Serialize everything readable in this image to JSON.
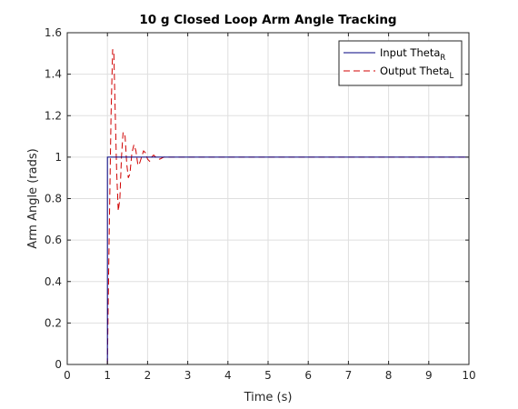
{
  "chart_data": {
    "type": "line",
    "title": "10 g Closed Loop Arm Angle Tracking",
    "xlabel": "Time (s)",
    "ylabel": "Arm Angle (rads)",
    "xlim": [
      0,
      10
    ],
    "ylim": [
      0,
      1.6
    ],
    "xticks": [
      "0",
      "1",
      "2",
      "3",
      "4",
      "5",
      "6",
      "7",
      "8",
      "9",
      "10"
    ],
    "yticks": [
      "0",
      "0.2",
      "0.4",
      "0.6",
      "0.8",
      "1",
      "1.2",
      "1.4",
      "1.6"
    ],
    "grid": true,
    "legend_position": "top-right",
    "series": [
      {
        "name": "Input Theta_R",
        "legend_main": "Input Theta",
        "legend_sub": "R",
        "color": "#00007f",
        "style": "solid",
        "x": [
          0,
          1.0,
          1.0,
          10
        ],
        "y": [
          0,
          0,
          1,
          1
        ]
      },
      {
        "name": "Output Theta_L",
        "legend_main": "Output Theta",
        "legend_sub": "L",
        "color": "#d00000",
        "style": "dashed",
        "x": [
          0,
          1.0,
          1.02,
          1.05,
          1.09,
          1.13,
          1.16,
          1.19,
          1.23,
          1.27,
          1.31,
          1.35,
          1.39,
          1.44,
          1.48,
          1.52,
          1.56,
          1.61,
          1.66,
          1.71,
          1.76,
          1.8,
          1.85,
          1.9,
          1.95,
          2.0,
          2.05,
          2.1,
          2.15,
          2.2,
          2.3,
          2.4,
          2.5,
          2.6,
          2.8,
          3.0,
          10
        ],
        "y": [
          0,
          0,
          0.3,
          0.7,
          1.2,
          1.52,
          1.5,
          1.25,
          0.93,
          0.74,
          0.8,
          1.0,
          1.12,
          1.1,
          0.97,
          0.9,
          0.92,
          1.02,
          1.06,
          1.03,
          0.96,
          0.97,
          1.0,
          1.03,
          1.02,
          0.99,
          0.98,
          1.0,
          1.01,
          1.0,
          0.99,
          1.0,
          1.0,
          1.0,
          1.0,
          1.0,
          1.0
        ]
      }
    ]
  }
}
